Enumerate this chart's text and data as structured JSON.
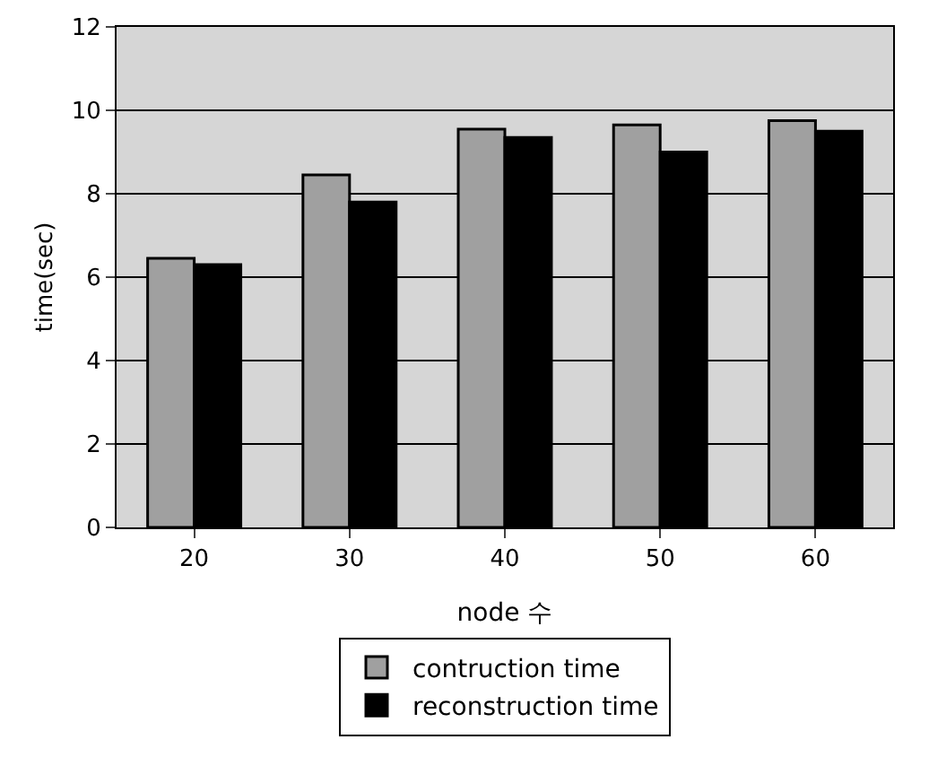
{
  "chart_data": {
    "type": "bar",
    "xlabel": "node 수",
    "ylabel": "time(sec)",
    "categories": [
      "20",
      "30",
      "40",
      "50",
      "60"
    ],
    "series": [
      {
        "name": "contruction time",
        "color": "#a0a0a0",
        "values": [
          6.45,
          8.45,
          9.55,
          9.65,
          9.75
        ]
      },
      {
        "name": "reconstruction time",
        "color": "#000000",
        "values": [
          6.3,
          7.8,
          9.35,
          9.0,
          9.5
        ]
      }
    ],
    "ylim": [
      0,
      12
    ],
    "yticks": [
      0,
      2,
      4,
      6,
      8,
      10,
      12
    ],
    "grid": "y",
    "legend": "bottom"
  }
}
